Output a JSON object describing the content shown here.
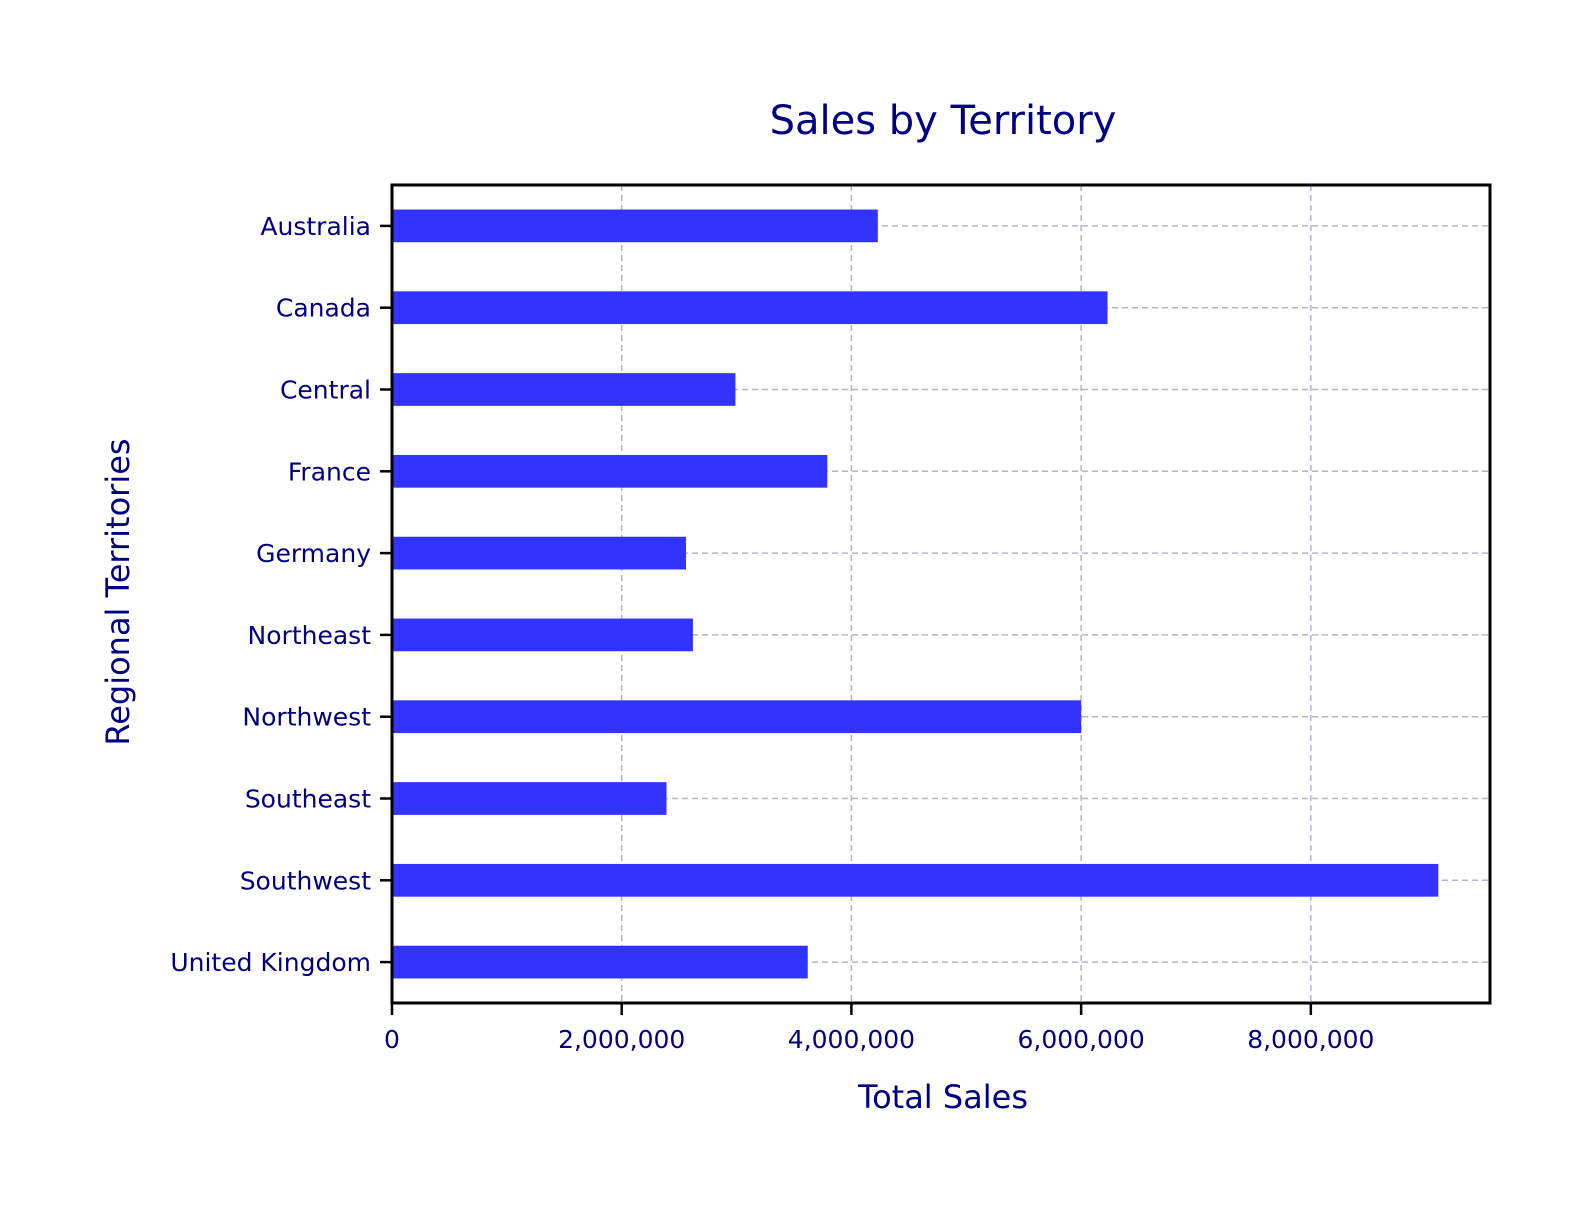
{
  "chart_data": {
    "type": "bar",
    "orientation": "horizontal",
    "title": "Sales by Territory",
    "xlabel": "Total Sales",
    "ylabel": "Regional Territories",
    "categories": [
      "Australia",
      "Canada",
      "Central",
      "France",
      "Germany",
      "Northeast",
      "Northwest",
      "Southeast",
      "Southwest",
      "United Kingdom"
    ],
    "values": [
      4230000,
      6230000,
      2990000,
      3790000,
      2560000,
      2620000,
      6000000,
      2390000,
      9110000,
      3620000
    ],
    "xlim": [
      0,
      9560000
    ],
    "xticks": [
      0,
      2000000,
      4000000,
      6000000,
      8000000
    ],
    "xtick_labels": [
      "0",
      "2,000,000",
      "4,000,000",
      "6,000,000",
      "8,000,000"
    ],
    "grid": true,
    "colors": {
      "bar": "#3333ff",
      "text": "#000080",
      "grid": "#b0b4c8",
      "axes": "#000000"
    }
  }
}
